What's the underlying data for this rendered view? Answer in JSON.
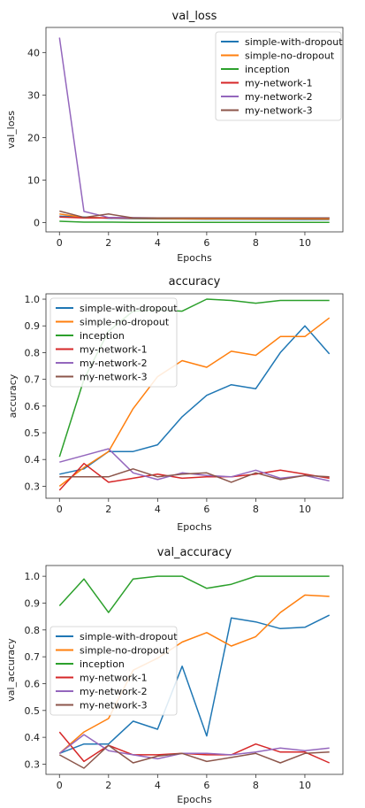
{
  "colors": {
    "simple-with-dropout": "#1f77b4",
    "simple-no-dropout": "#ff7f0e",
    "inception": "#2ca02c",
    "my-network-1": "#d62728",
    "my-network-2": "#9467bd",
    "my-network-3": "#8c564b"
  },
  "chart_data": [
    {
      "type": "line",
      "title": "val_loss",
      "xlabel": "Epochs",
      "ylabel": "val_loss",
      "x": [
        0,
        1,
        2,
        3,
        4,
        5,
        6,
        7,
        8,
        9,
        10,
        11
      ],
      "xticks": [
        0,
        2,
        4,
        6,
        8,
        10
      ],
      "yticks": [
        0,
        10,
        20,
        30,
        40
      ],
      "xlim": [
        -0.55,
        11.55
      ],
      "ylim": [
        -2.2,
        45.9
      ],
      "grid": false,
      "legend_position": "top-right",
      "series": [
        {
          "name": "simple-with-dropout",
          "values": [
            1.5,
            1.3,
            1.0,
            0.9,
            0.85,
            0.82,
            0.78,
            0.76,
            0.74,
            0.72,
            0.7,
            0.7
          ]
        },
        {
          "name": "simple-no-dropout",
          "values": [
            2.0,
            1.2,
            1.1,
            1.0,
            0.95,
            0.9,
            0.88,
            0.86,
            0.85,
            0.84,
            0.83,
            0.82
          ]
        },
        {
          "name": "inception",
          "values": [
            0.3,
            0.1,
            0.1,
            0.05,
            0.03,
            0.03,
            0.03,
            0.02,
            0.02,
            0.02,
            0.02,
            0.02
          ]
        },
        {
          "name": "my-network-1",
          "values": [
            1.3,
            1.1,
            1.1,
            1.1,
            1.1,
            1.1,
            1.1,
            1.1,
            1.1,
            1.1,
            1.1,
            1.1
          ]
        },
        {
          "name": "my-network-2",
          "values": [
            43.5,
            2.6,
            1.2,
            1.15,
            1.1,
            1.1,
            1.1,
            1.1,
            1.1,
            1.1,
            1.1,
            1.1
          ]
        },
        {
          "name": "my-network-3",
          "values": [
            2.7,
            1.2,
            2.0,
            1.1,
            1.1,
            1.1,
            1.1,
            1.1,
            1.1,
            1.1,
            1.1,
            1.1
          ]
        }
      ]
    },
    {
      "type": "line",
      "title": "accuracy",
      "xlabel": "Epochs",
      "ylabel": "accuracy",
      "x": [
        0,
        1,
        2,
        3,
        4,
        5,
        6,
        7,
        8,
        9,
        10,
        11
      ],
      "xticks": [
        0,
        2,
        4,
        6,
        8,
        10
      ],
      "yticks": [
        0.3,
        0.4,
        0.5,
        0.6,
        0.7,
        0.8,
        0.9,
        1.0
      ],
      "xlim": [
        -0.55,
        11.55
      ],
      "ylim": [
        0.255,
        1.02
      ],
      "grid": false,
      "legend_position": "top-left",
      "series": [
        {
          "name": "simple-with-dropout",
          "values": [
            0.345,
            0.365,
            0.43,
            0.43,
            0.455,
            0.56,
            0.64,
            0.68,
            0.665,
            0.8,
            0.9,
            0.795
          ]
        },
        {
          "name": "simple-no-dropout",
          "values": [
            0.3,
            0.37,
            0.43,
            0.59,
            0.71,
            0.77,
            0.745,
            0.805,
            0.79,
            0.86,
            0.86,
            0.93
          ]
        },
        {
          "name": "inception",
          "values": [
            0.41,
            0.7,
            0.88,
            0.955,
            0.96,
            0.955,
            1.0,
            0.995,
            0.985,
            0.995,
            0.995,
            0.995
          ]
        },
        {
          "name": "my-network-1",
          "values": [
            0.285,
            0.385,
            0.315,
            0.33,
            0.345,
            0.33,
            0.335,
            0.335,
            0.345,
            0.36,
            0.345,
            0.33
          ]
        },
        {
          "name": "my-network-2",
          "values": [
            0.39,
            0.415,
            0.44,
            0.35,
            0.325,
            0.35,
            0.34,
            0.335,
            0.36,
            0.33,
            0.34,
            0.32
          ]
        },
        {
          "name": "my-network-3",
          "values": [
            0.335,
            0.335,
            0.335,
            0.365,
            0.335,
            0.345,
            0.35,
            0.315,
            0.35,
            0.325,
            0.34,
            0.335
          ]
        }
      ]
    },
    {
      "type": "line",
      "title": "val_accuracy",
      "xlabel": "Epochs",
      "ylabel": "val_accuracy",
      "x": [
        0,
        1,
        2,
        3,
        4,
        5,
        6,
        7,
        8,
        9,
        10,
        11
      ],
      "xticks": [
        0,
        2,
        4,
        6,
        8,
        10
      ],
      "yticks": [
        0.3,
        0.4,
        0.5,
        0.6,
        0.7,
        0.8,
        0.9,
        1.0
      ],
      "xlim": [
        -0.55,
        11.55
      ],
      "ylim": [
        0.262,
        1.04
      ],
      "grid": false,
      "legend_position": "center-left",
      "series": [
        {
          "name": "simple-with-dropout",
          "values": [
            0.34,
            0.375,
            0.375,
            0.46,
            0.43,
            0.665,
            0.405,
            0.845,
            0.83,
            0.805,
            0.81,
            0.855
          ]
        },
        {
          "name": "simple-no-dropout",
          "values": [
            0.34,
            0.42,
            0.47,
            0.65,
            0.695,
            0.755,
            0.79,
            0.74,
            0.775,
            0.865,
            0.93,
            0.925
          ]
        },
        {
          "name": "inception",
          "values": [
            0.89,
            0.99,
            0.865,
            0.99,
            1.0,
            1.0,
            0.955,
            0.97,
            1.0,
            1.0,
            1.0,
            1.0
          ]
        },
        {
          "name": "my-network-1",
          "values": [
            0.42,
            0.31,
            0.37,
            0.335,
            0.335,
            0.34,
            0.335,
            0.335,
            0.375,
            0.345,
            0.345,
            0.305
          ]
        },
        {
          "name": "my-network-2",
          "values": [
            0.34,
            0.41,
            0.35,
            0.335,
            0.32,
            0.34,
            0.34,
            0.335,
            0.345,
            0.36,
            0.35,
            0.36
          ]
        },
        {
          "name": "my-network-3",
          "values": [
            0.335,
            0.285,
            0.37,
            0.305,
            0.33,
            0.34,
            0.31,
            0.325,
            0.34,
            0.305,
            0.34,
            0.345
          ]
        }
      ]
    }
  ]
}
